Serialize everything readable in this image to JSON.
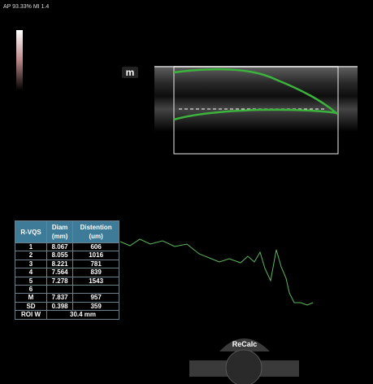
{
  "status": {
    "text": "AP 93.33% MI 1.4"
  },
  "marker": {
    "label": "m"
  },
  "table": {
    "header": [
      {
        "line1": "R-VQS"
      },
      {
        "line1": "Diam",
        "line2": "(mm)"
      },
      {
        "line1": "Distention",
        "line2": "(um)"
      }
    ],
    "rows": [
      [
        "1",
        "8.067",
        "606"
      ],
      [
        "2",
        "8.055",
        "1016"
      ],
      [
        "3",
        "8.221",
        "781"
      ],
      [
        "4",
        "7.564",
        "839"
      ],
      [
        "5",
        "7.278",
        "1543"
      ],
      [
        "6"
      ],
      [
        "M",
        "7.837",
        "957"
      ],
      [
        "SD",
        "0.398",
        "359"
      ]
    ],
    "footer": [
      "ROI W",
      "30.4 mm"
    ]
  },
  "button": {
    "label": "ReCalc"
  }
}
